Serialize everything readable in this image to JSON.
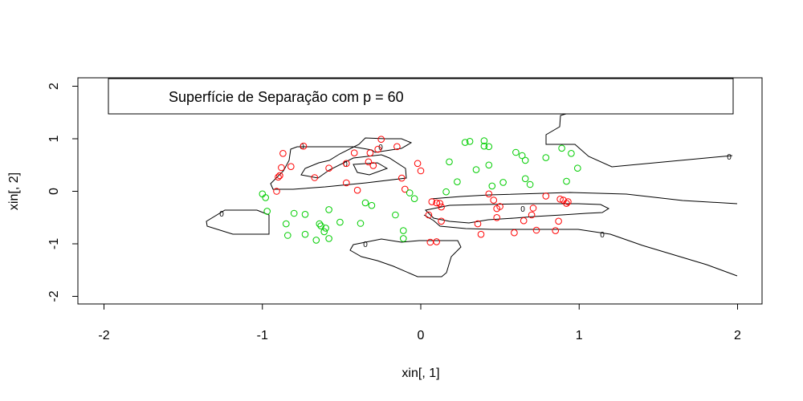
{
  "chart_data": {
    "type": "scatter",
    "title": "",
    "xlabel": "xin[, 1]",
    "ylabel": "xin[, 2]",
    "xlim": [
      -2,
      2
    ],
    "ylim": [
      -2,
      2
    ],
    "x_ticks": [
      "-2",
      "-1",
      "0",
      "1",
      "2"
    ],
    "y_ticks": [
      "-2",
      "-1",
      "0",
      "1",
      "2"
    ],
    "grid": false,
    "legend": {
      "text": "Superfície de Separação com p = 60",
      "placement": "top"
    },
    "colors": {
      "class_red": "#ff0000",
      "class_green": "#00cd00",
      "contour": "#000000",
      "axis": "#000000"
    },
    "contour_level_label": "0",
    "series": [
      {
        "color": "#ff0000",
        "points": [
          [
            -0.25,
            0.99
          ],
          [
            -0.15,
            0.85
          ],
          [
            -0.27,
            0.8
          ],
          [
            -0.74,
            0.86
          ],
          [
            -0.87,
            0.72
          ],
          [
            -0.88,
            0.45
          ],
          [
            -0.89,
            0.3
          ],
          [
            -0.82,
            0.47
          ],
          [
            -0.67,
            0.26
          ],
          [
            -0.58,
            0.44
          ],
          [
            -0.42,
            0.73
          ],
          [
            -0.32,
            0.73
          ],
          [
            -0.33,
            0.56
          ],
          [
            -0.47,
            0.53
          ],
          [
            -0.3,
            0.49
          ],
          [
            -0.4,
            0.02
          ],
          [
            -0.47,
            0.16
          ],
          [
            -0.12,
            0.25
          ],
          [
            -0.1,
            0.04
          ],
          [
            -0.02,
            0.53
          ],
          [
            0.0,
            0.39
          ],
          [
            -0.9,
            0.27
          ],
          [
            -0.91,
            0.0
          ],
          [
            0.07,
            -0.2
          ],
          [
            0.12,
            -0.23
          ],
          [
            0.1,
            -0.22
          ],
          [
            0.13,
            -0.3
          ],
          [
            0.13,
            -0.57
          ],
          [
            0.05,
            -0.45
          ],
          [
            0.06,
            -0.97
          ],
          [
            0.1,
            -0.96
          ],
          [
            0.36,
            -0.62
          ],
          [
            0.38,
            -0.82
          ],
          [
            0.43,
            -0.05
          ],
          [
            0.48,
            -0.5
          ],
          [
            0.48,
            -0.33
          ],
          [
            0.5,
            -0.29
          ],
          [
            0.46,
            -0.17
          ],
          [
            0.59,
            -0.79
          ],
          [
            0.65,
            -0.56
          ],
          [
            0.7,
            -0.45
          ],
          [
            0.71,
            -0.32
          ],
          [
            0.73,
            -0.74
          ],
          [
            0.79,
            -0.09
          ],
          [
            0.85,
            -0.75
          ],
          [
            0.87,
            -0.57
          ],
          [
            0.88,
            -0.15
          ],
          [
            0.9,
            -0.17
          ],
          [
            0.92,
            -0.23
          ],
          [
            0.93,
            -0.2
          ]
        ]
      },
      {
        "color": "#00cd00",
        "points": [
          [
            -1.0,
            -0.05
          ],
          [
            -0.98,
            -0.12
          ],
          [
            -0.97,
            -0.38
          ],
          [
            -0.85,
            -0.62
          ],
          [
            -0.84,
            -0.84
          ],
          [
            -0.8,
            -0.42
          ],
          [
            -0.73,
            -0.82
          ],
          [
            -0.73,
            -0.44
          ],
          [
            -0.66,
            -0.93
          ],
          [
            -0.64,
            -0.62
          ],
          [
            -0.63,
            -0.66
          ],
          [
            -0.61,
            -0.77
          ],
          [
            -0.6,
            -0.7
          ],
          [
            -0.58,
            -0.9
          ],
          [
            -0.58,
            -0.35
          ],
          [
            -0.51,
            -0.59
          ],
          [
            -0.38,
            -0.61
          ],
          [
            -0.35,
            -0.22
          ],
          [
            -0.31,
            -0.27
          ],
          [
            -0.16,
            -0.45
          ],
          [
            -0.11,
            -0.75
          ],
          [
            -0.11,
            -0.9
          ],
          [
            -0.07,
            -0.03
          ],
          [
            -0.04,
            -0.14
          ],
          [
            0.16,
            -0.01
          ],
          [
            0.18,
            0.56
          ],
          [
            0.23,
            0.18
          ],
          [
            0.28,
            0.93
          ],
          [
            0.31,
            0.95
          ],
          [
            0.35,
            0.41
          ],
          [
            0.4,
            0.86
          ],
          [
            0.4,
            0.96
          ],
          [
            0.43,
            0.85
          ],
          [
            0.43,
            0.5
          ],
          [
            0.45,
            0.1
          ],
          [
            0.52,
            0.17
          ],
          [
            0.6,
            0.74
          ],
          [
            0.64,
            0.68
          ],
          [
            0.66,
            0.59
          ],
          [
            0.66,
            0.24
          ],
          [
            0.69,
            0.13
          ],
          [
            0.79,
            0.64
          ],
          [
            0.89,
            0.82
          ],
          [
            0.92,
            0.19
          ],
          [
            0.95,
            0.72
          ],
          [
            0.99,
            0.44
          ]
        ]
      }
    ]
  }
}
